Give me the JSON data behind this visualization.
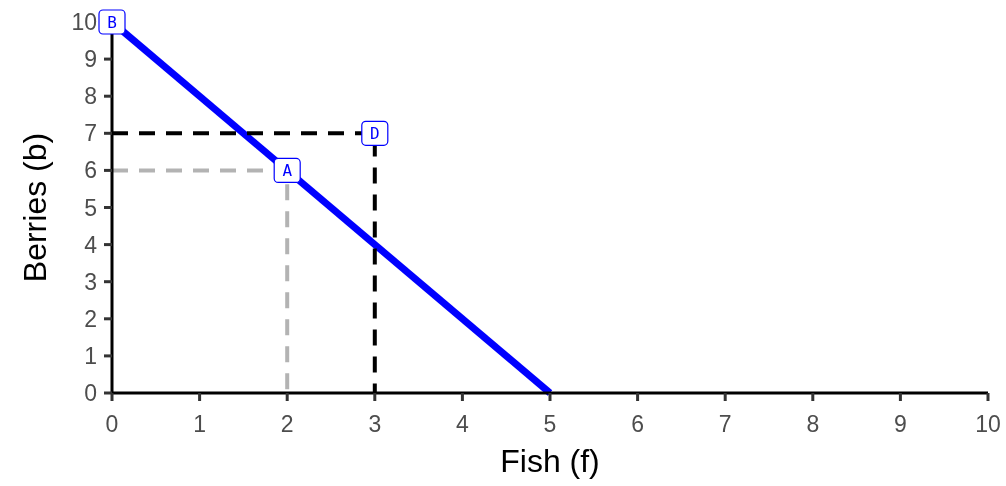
{
  "chart_data": {
    "type": "line",
    "xlabel": "Fish (f)",
    "ylabel": "Berries (b)",
    "xlim": [
      0,
      10
    ],
    "ylim": [
      0,
      10
    ],
    "xticks": [
      0,
      1,
      2,
      3,
      4,
      5,
      6,
      7,
      8,
      9,
      10
    ],
    "yticks": [
      0,
      1,
      2,
      3,
      4,
      5,
      6,
      7,
      8,
      9,
      10
    ],
    "series": [
      {
        "color": "#0000ff",
        "line_style": "solid",
        "x": [
          0,
          5
        ],
        "values": [
          10,
          0
        ]
      },
      {
        "color": "#b3b3b3",
        "line_style": "dashed",
        "x": [
          0,
          2,
          2
        ],
        "values": [
          6,
          6,
          0
        ]
      },
      {
        "color": "#000000",
        "line_style": "dashed",
        "x": [
          0,
          3,
          3
        ],
        "values": [
          7,
          7,
          0
        ]
      }
    ],
    "annotations": [
      {
        "text": "B",
        "x": 0,
        "y": 10
      },
      {
        "text": "A",
        "x": 2,
        "y": 6
      },
      {
        "text": "D",
        "x": 3,
        "y": 7
      }
    ]
  }
}
